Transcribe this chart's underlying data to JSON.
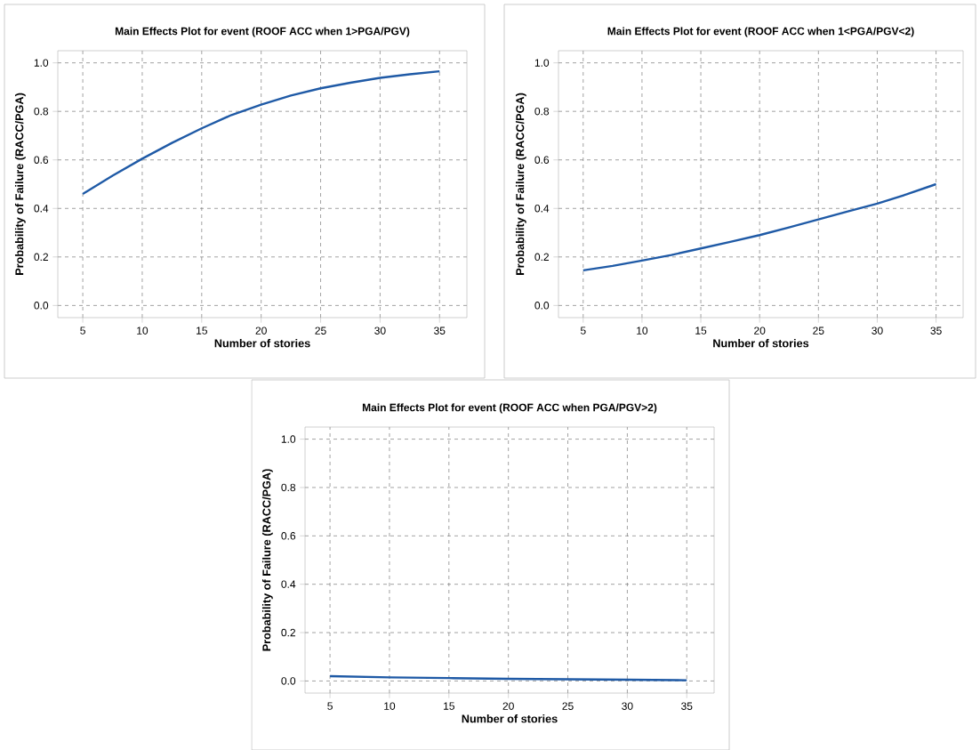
{
  "chart_data": [
    {
      "type": "line",
      "title": "Main Effects Plot for event (ROOF ACC when 1>PGA/PGV)",
      "xlabel": "Number of stories",
      "ylabel": "Probability of Failure (RACC/PGA)",
      "color": "#1f5aa6",
      "grid": true,
      "x": [
        5,
        7.5,
        10,
        12.5,
        15,
        17.5,
        20,
        22.5,
        25,
        27.5,
        30,
        32.5,
        35
      ],
      "values": [
        0.46,
        0.535,
        0.605,
        0.67,
        0.73,
        0.785,
        0.828,
        0.865,
        0.895,
        0.918,
        0.938,
        0.953,
        0.965
      ],
      "xlim": [
        2.9,
        37.3
      ],
      "ylim": [
        -0.05,
        1.05
      ],
      "xticks": [
        5,
        10,
        15,
        20,
        25,
        30,
        35
      ],
      "yticks": [
        {
          "value": 0,
          "label": "0.0"
        },
        {
          "value": 0.2,
          "label": "0.2"
        },
        {
          "value": 0.4,
          "label": "0.4"
        },
        {
          "value": 0.6,
          "label": "0.6"
        },
        {
          "value": 0.8,
          "label": "0.8"
        },
        {
          "value": 1,
          "label": "1.0"
        }
      ]
    },
    {
      "type": "line",
      "title": "Main Effects Plot for event (ROOF ACC when 1<PGA/PGV<2)",
      "xlabel": "Number of stories",
      "ylabel": "Probability of Failure (RACC/PGA)",
      "color": "#1f5aa6",
      "grid": true,
      "x": [
        5,
        7.5,
        10,
        12.5,
        15,
        17.5,
        20,
        22.5,
        25,
        27.5,
        30,
        32.5,
        35
      ],
      "values": [
        0.145,
        0.163,
        0.185,
        0.208,
        0.235,
        0.262,
        0.29,
        0.322,
        0.355,
        0.388,
        0.42,
        0.458,
        0.5
      ],
      "xlim": [
        2.9,
        37.3
      ],
      "ylim": [
        -0.05,
        1.05
      ],
      "xticks": [
        5,
        10,
        15,
        20,
        25,
        30,
        35
      ],
      "yticks": [
        {
          "value": 0,
          "label": "0.0"
        },
        {
          "value": 0.2,
          "label": "0.2"
        },
        {
          "value": 0.4,
          "label": "0.4"
        },
        {
          "value": 0.6,
          "label": "0.6"
        },
        {
          "value": 0.8,
          "label": "0.8"
        },
        {
          "value": 1,
          "label": "1.0"
        }
      ]
    },
    {
      "type": "line",
      "title": "Main Effects Plot for event (ROOF ACC when PGA/PGV>2)",
      "xlabel": "Number of stories",
      "ylabel": "Probability of Failure (RACC/PGA)",
      "color": "#1f5aa6",
      "grid": true,
      "x": [
        5,
        10,
        15,
        20,
        25,
        30,
        35
      ],
      "values": [
        0.02,
        0.015,
        0.012,
        0.009,
        0.007,
        0.005,
        0.003
      ],
      "xlim": [
        2.9,
        37.3
      ],
      "ylim": [
        -0.05,
        1.05
      ],
      "xticks": [
        5,
        10,
        15,
        20,
        25,
        30,
        35
      ],
      "yticks": [
        {
          "value": 0,
          "label": "0.0"
        },
        {
          "value": 0.2,
          "label": "0.2"
        },
        {
          "value": 0.4,
          "label": "0.4"
        },
        {
          "value": 0.6,
          "label": "0.6"
        },
        {
          "value": 0.8,
          "label": "0.8"
        },
        {
          "value": 1,
          "label": "1.0"
        }
      ]
    }
  ]
}
